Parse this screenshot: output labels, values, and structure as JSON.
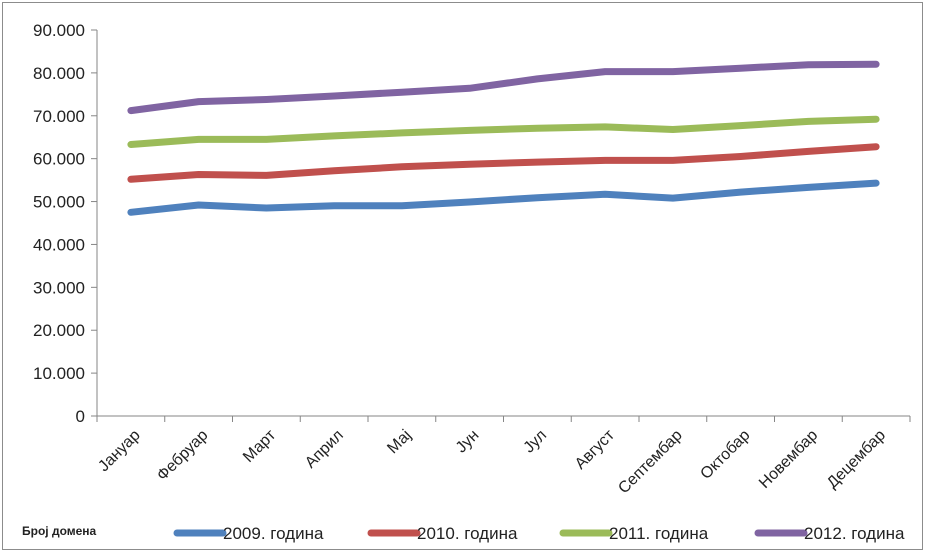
{
  "chart_data": {
    "type": "line",
    "categories": [
      "Јануар",
      "Фебруар",
      "Март",
      "Април",
      "Мај",
      "Јун",
      "Јул",
      "Август",
      "Септембар",
      "Октобар",
      "Новембар",
      "Децембар"
    ],
    "yticks": [
      "0",
      "10.000",
      "20.000",
      "30.000",
      "40.000",
      "50.000",
      "60.000",
      "70.000",
      "80.000",
      "90.000"
    ],
    "ylim": [
      0,
      90000
    ],
    "ylabel": "Број домена",
    "grid": false,
    "legend_position": "bottom",
    "series": [
      {
        "name": "2009. година",
        "color": "#4f81bd",
        "values": [
          47500,
          49200,
          48500,
          49000,
          49000,
          49900,
          50900,
          51700,
          50800,
          52200,
          53300,
          54300
        ]
      },
      {
        "name": "2010. година",
        "color": "#c0504d",
        "values": [
          55200,
          56300,
          56100,
          57200,
          58100,
          58700,
          59200,
          59600,
          59600,
          60500,
          61700,
          62800
        ]
      },
      {
        "name": "2011. година",
        "color": "#9bbb59",
        "values": [
          63300,
          64500,
          64500,
          65300,
          66000,
          66600,
          67100,
          67400,
          66800,
          67700,
          68700,
          69200
        ]
      },
      {
        "name": "2012. година",
        "color": "#8064a2",
        "values": [
          71200,
          73300,
          73800,
          74600,
          75500,
          76400,
          78600,
          80300,
          80300,
          81100,
          81900,
          82000
        ]
      }
    ]
  }
}
